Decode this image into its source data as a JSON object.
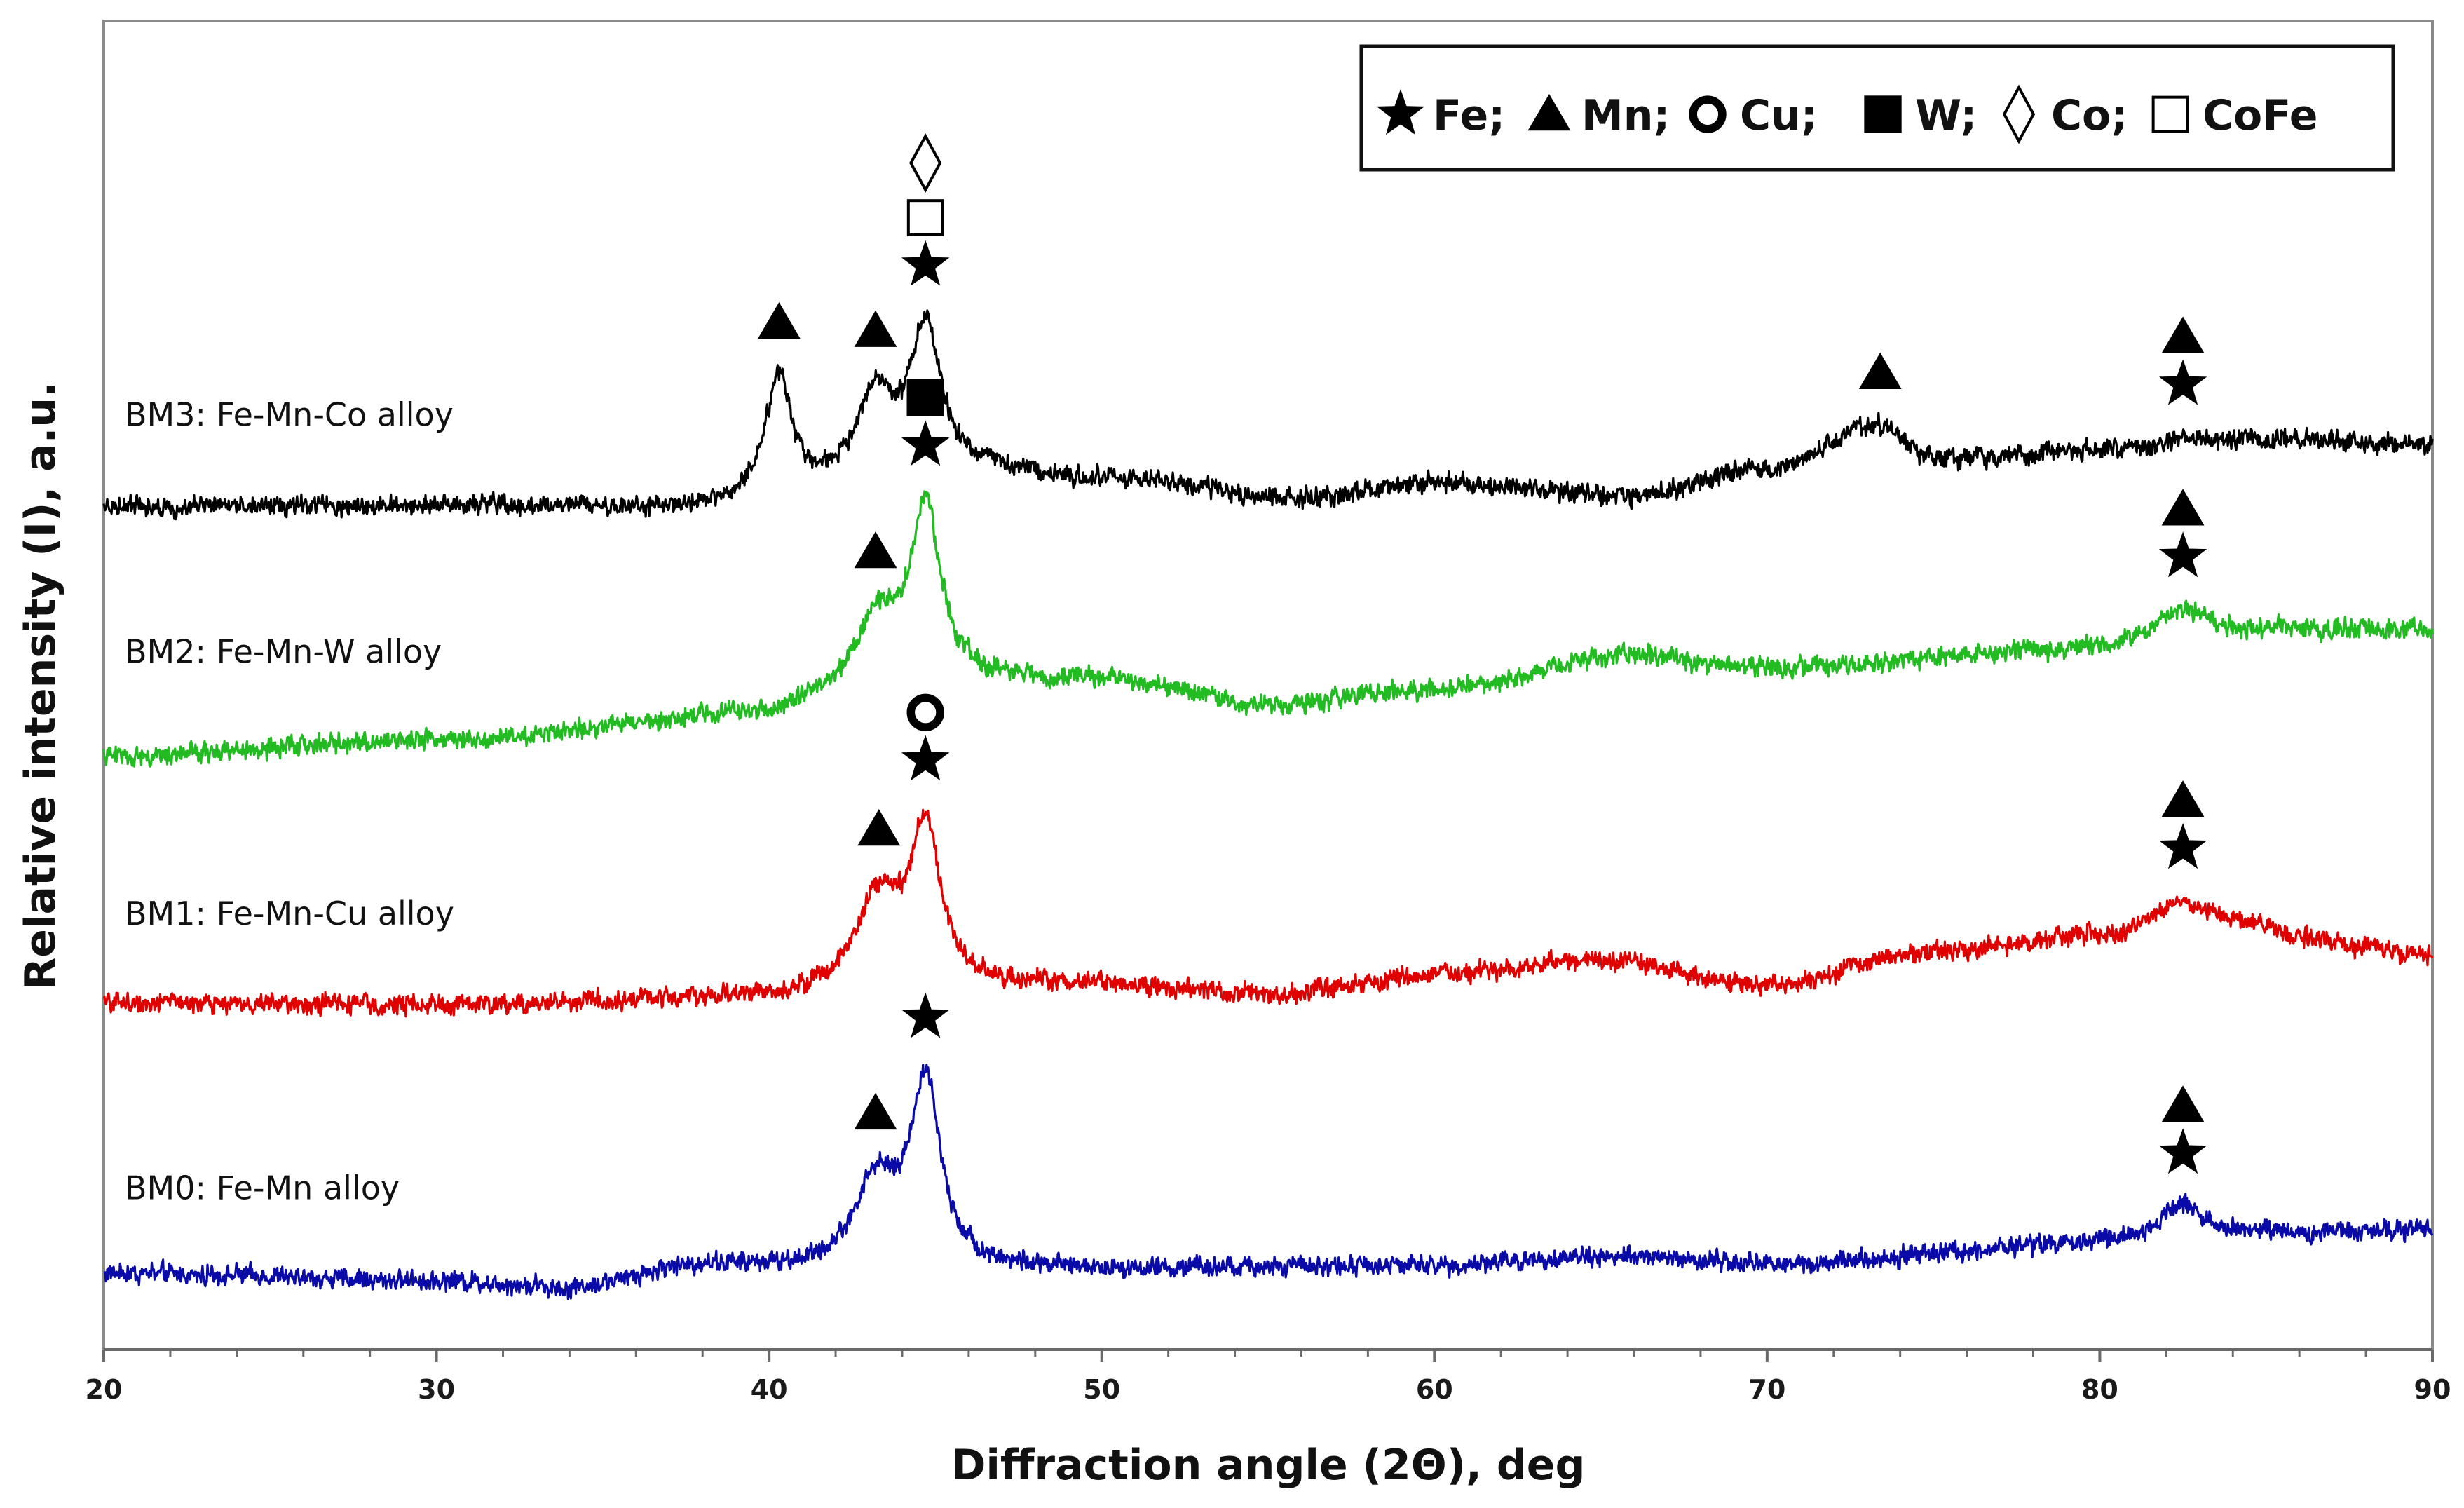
{
  "chart_data": {
    "type": "line",
    "title": "",
    "xlabel": "Diffraction angle (2Θ), deg",
    "ylabel": "Relative intensity (I), a.u.",
    "xlim": [
      20,
      90
    ],
    "xticks": [
      20,
      30,
      40,
      50,
      60,
      70,
      80,
      90
    ],
    "xtick_labels": [
      "20",
      "30",
      "40",
      "50",
      "60",
      "70",
      "80",
      "90"
    ],
    "y_ticks_shown": false,
    "grid": false,
    "legend": {
      "position": "top-right",
      "entries": [
        {
          "symbol": "star-filled",
          "label": "Fe;"
        },
        {
          "symbol": "triangle-filled",
          "label": "Mn;"
        },
        {
          "symbol": "circle-ring",
          "label": "Cu;"
        },
        {
          "symbol": "square-filled",
          "label": "W;"
        },
        {
          "symbol": "diamond-open",
          "label": "Co;"
        },
        {
          "symbol": "square-open",
          "label": "CoFe"
        }
      ]
    },
    "series": [
      {
        "name": "BM0: Fe-Mn alloy",
        "color": "#0a0aa8",
        "offset": 0,
        "baseline": [
          [
            20,
            2.2
          ],
          [
            30,
            1.6
          ],
          [
            34,
            1.0
          ],
          [
            38,
            2.8
          ],
          [
            42,
            2.4
          ],
          [
            50,
            2.5
          ],
          [
            60,
            2.8
          ],
          [
            65,
            3.6
          ],
          [
            70,
            3.0
          ],
          [
            80,
            4.6
          ],
          [
            82.5,
            5.4
          ],
          [
            90,
            5.6
          ]
        ],
        "peaks": [
          {
            "x": 43.2,
            "h": 6.9,
            "w": 0.8
          },
          {
            "x": 44.7,
            "h": 14.9,
            "w": 0.55
          },
          {
            "x": 82.5,
            "h": 2.4,
            "w": 0.8
          }
        ],
        "markers": [
          {
            "x": 43.2,
            "symbol": "triangle-filled",
            "stack": 0
          },
          {
            "x": 44.7,
            "symbol": "star-filled",
            "stack": 0
          },
          {
            "x": 82.5,
            "symbol": "star-filled",
            "stack": 0
          },
          {
            "x": 82.5,
            "symbol": "triangle-filled",
            "stack": 1
          }
        ]
      },
      {
        "name": "BM1: Fe-Mn-Cu alloy",
        "color": "#e00000",
        "offset": 22,
        "baseline": [
          [
            20,
            2.2
          ],
          [
            30,
            2.0
          ],
          [
            40,
            2.6
          ],
          [
            42,
            3.0
          ],
          [
            50,
            3.6
          ],
          [
            55,
            2.8
          ],
          [
            60,
            4.4
          ],
          [
            65,
            5.6
          ],
          [
            70,
            3.6
          ],
          [
            75,
            6.4
          ],
          [
            80,
            7.6
          ],
          [
            82.5,
            8.8
          ],
          [
            90,
            6.2
          ]
        ],
        "peaks": [
          {
            "x": 43.3,
            "h": 7.4,
            "w": 0.8
          },
          {
            "x": 44.7,
            "h": 12.8,
            "w": 0.55
          },
          {
            "x": 82.5,
            "h": 1.8,
            "w": 0.8
          }
        ],
        "markers": [
          {
            "x": 43.3,
            "symbol": "triangle-filled",
            "stack": 0
          },
          {
            "x": 44.7,
            "symbol": "star-filled",
            "stack": 0
          },
          {
            "x": 44.7,
            "symbol": "circle-ring",
            "stack": 1
          },
          {
            "x": 82.5,
            "symbol": "star-filled",
            "stack": 0
          },
          {
            "x": 82.5,
            "symbol": "triangle-filled",
            "stack": 1
          }
        ]
      },
      {
        "name": "BM2: Fe-Mn-W alloy",
        "color": "#22bb22",
        "offset": 43,
        "baseline": [
          [
            20,
            1.2
          ],
          [
            30,
            2.6
          ],
          [
            40,
            4.6
          ],
          [
            42,
            5.6
          ],
          [
            46,
            7.2
          ],
          [
            50,
            7.4
          ],
          [
            55,
            5.4
          ],
          [
            60,
            6.6
          ],
          [
            66,
            9.4
          ],
          [
            70,
            8.4
          ],
          [
            80,
            10.0
          ],
          [
            82.5,
            11.4
          ],
          [
            90,
            11.6
          ]
        ],
        "peaks": [
          {
            "x": 43.2,
            "h": 6.1,
            "w": 0.8
          },
          {
            "x": 44.7,
            "h": 14.2,
            "w": 0.55
          },
          {
            "x": 82.5,
            "h": 1.9,
            "w": 0.8
          }
        ],
        "markers": [
          {
            "x": 43.2,
            "symbol": "triangle-filled",
            "stack": 0
          },
          {
            "x": 44.7,
            "symbol": "star-filled",
            "stack": 0
          },
          {
            "x": 44.7,
            "symbol": "square-filled",
            "stack": 1
          },
          {
            "x": 82.5,
            "symbol": "star-filled",
            "stack": 0
          },
          {
            "x": 82.5,
            "symbol": "triangle-filled",
            "stack": 1
          }
        ]
      },
      {
        "name": "BM3: Fe-Mn-Co alloy",
        "color": "#000000",
        "offset": 62,
        "baseline": [
          [
            20,
            2.6
          ],
          [
            30,
            2.6
          ],
          [
            38,
            2.4
          ],
          [
            40,
            3.6
          ],
          [
            46,
            5.2
          ],
          [
            50,
            4.8
          ],
          [
            56,
            3.2
          ],
          [
            60,
            4.4
          ],
          [
            66,
            3.4
          ],
          [
            70,
            5.6
          ],
          [
            73,
            8.0
          ],
          [
            75,
            6.4
          ],
          [
            80,
            7.0
          ],
          [
            85,
            8.0
          ],
          [
            90,
            7.6
          ]
        ],
        "peaks": [
          {
            "x": 40.3,
            "h": 9.2,
            "w": 0.45
          },
          {
            "x": 43.2,
            "h": 6.6,
            "w": 0.7
          },
          {
            "x": 44.7,
            "h": 11.7,
            "w": 0.55
          },
          {
            "x": 73.4,
            "h": 1.4,
            "w": 0.7
          },
          {
            "x": 82.5,
            "h": 0.8,
            "w": 0.6
          }
        ],
        "markers": [
          {
            "x": 40.3,
            "symbol": "triangle-filled",
            "stack": 0
          },
          {
            "x": 43.2,
            "symbol": "triangle-filled",
            "stack": 0
          },
          {
            "x": 44.7,
            "symbol": "star-filled",
            "stack": 0
          },
          {
            "x": 44.7,
            "symbol": "square-open",
            "stack": 1
          },
          {
            "x": 44.7,
            "symbol": "diamond-open",
            "stack": 2
          },
          {
            "x": 73.4,
            "symbol": "triangle-filled",
            "stack": 0
          },
          {
            "x": 82.5,
            "symbol": "star-filled",
            "stack": 0
          },
          {
            "x": 82.5,
            "symbol": "triangle-filled",
            "stack": 1
          }
        ]
      }
    ]
  }
}
